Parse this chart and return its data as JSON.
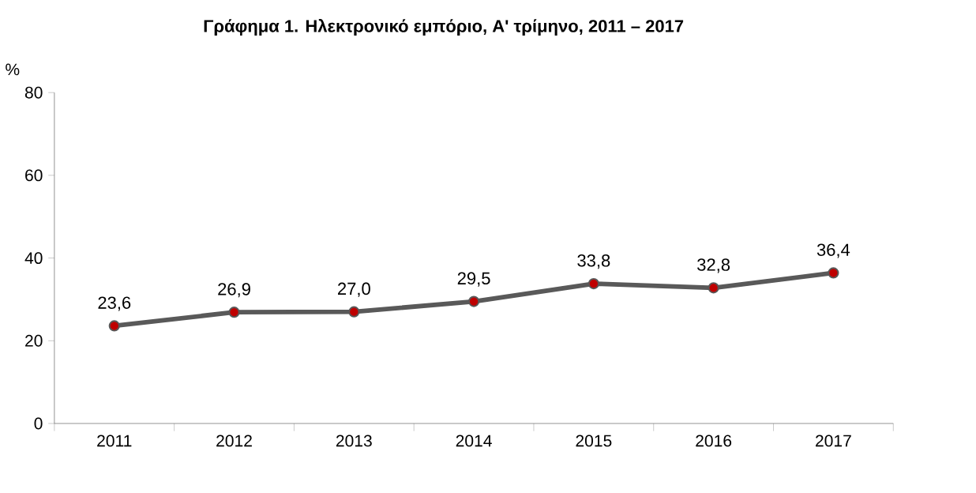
{
  "chart_data": {
    "type": "line",
    "title": "Γράφημα 1. Ηλεκτρονικό εμπόριο, Α' τρίμηνο, 2011 – 2017",
    "ylabel": "%",
    "categories": [
      "2011",
      "2012",
      "2013",
      "2014",
      "2015",
      "2016",
      "2017"
    ],
    "series": [
      {
        "color": "#595959",
        "values": [
          23.6,
          26.9,
          27.0,
          29.5,
          33.8,
          32.8,
          36.4
        ],
        "value_labels": [
          "23,6",
          "26,9",
          "27,0",
          "29,5",
          "33,8",
          "32,8",
          "36,4"
        ]
      }
    ],
    "ylim": [
      0,
      80
    ],
    "yticks": [
      0,
      20,
      40,
      60,
      80
    ],
    "marker": "circle",
    "line_style": "solid"
  }
}
